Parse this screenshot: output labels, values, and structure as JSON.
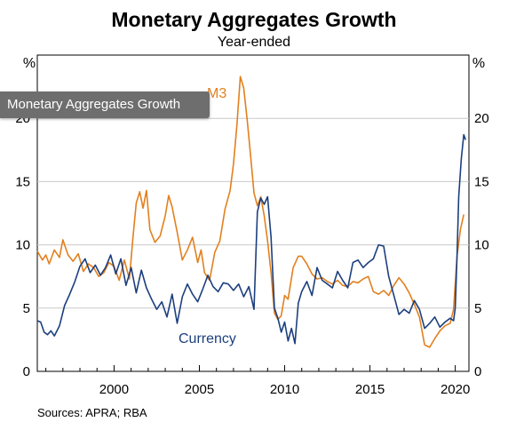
{
  "overlay_label": "Monetary Aggregates Growth",
  "colors": {
    "m3": "#e2801e",
    "currency": "#1c3f7e",
    "grid": "#c9c9c9",
    "axis": "#000000"
  },
  "chart_data": {
    "type": "line",
    "title": "Monetary Aggregates Growth",
    "subtitle": "Year-ended",
    "source": "Sources: APRA; RBA",
    "y_unit_left": "%",
    "y_unit_right": "%",
    "ylim": [
      0,
      25
    ],
    "xlim": [
      1995.5,
      2020.8
    ],
    "grid": true,
    "y_ticks": [
      0,
      5,
      10,
      15,
      20
    ],
    "x_ticks": [
      2000,
      2005,
      2010,
      2015,
      2020
    ],
    "series": [
      {
        "name": "M3",
        "label": "M3",
        "color": "#e2801e",
        "x": [
          1995.5,
          1995.8,
          1996.0,
          1996.2,
          1996.5,
          1996.8,
          1997.0,
          1997.3,
          1997.6,
          1997.9,
          1998.2,
          1998.5,
          1998.8,
          1999.1,
          1999.4,
          1999.7,
          2000.0,
          2000.3,
          2000.6,
          2000.9,
          2001.1,
          2001.3,
          2001.5,
          2001.7,
          2001.9,
          2002.1,
          2002.4,
          2002.7,
          2003.0,
          2003.2,
          2003.4,
          2003.7,
          2004.0,
          2004.3,
          2004.6,
          2004.9,
          2005.1,
          2005.3,
          2005.6,
          2005.9,
          2006.2,
          2006.5,
          2006.8,
          2007.0,
          2007.2,
          2007.4,
          2007.6,
          2007.8,
          2008.0,
          2008.2,
          2008.4,
          2008.6,
          2008.8,
          2009.0,
          2009.2,
          2009.4,
          2009.6,
          2009.8,
          2010.0,
          2010.2,
          2010.5,
          2010.8,
          2011.0,
          2011.3,
          2011.6,
          2011.9,
          2012.2,
          2012.5,
          2012.8,
          2013.1,
          2013.4,
          2013.7,
          2014.0,
          2014.3,
          2014.6,
          2014.9,
          2015.2,
          2015.5,
          2015.8,
          2016.1,
          2016.4,
          2016.7,
          2017.0,
          2017.3,
          2017.6,
          2017.9,
          2018.2,
          2018.5,
          2018.8,
          2019.1,
          2019.4,
          2019.7,
          2019.9,
          2020.1,
          2020.3,
          2020.5
        ],
        "values": [
          9.5,
          8.8,
          9.2,
          8.5,
          9.6,
          9.0,
          10.4,
          9.2,
          8.7,
          9.3,
          7.9,
          8.5,
          8.2,
          7.5,
          7.8,
          8.6,
          8.3,
          7.2,
          8.8,
          7.3,
          10.5,
          13.3,
          14.2,
          12.9,
          14.3,
          11.2,
          10.2,
          10.7,
          12.3,
          13.9,
          13.0,
          11.0,
          8.8,
          9.6,
          10.6,
          8.6,
          9.6,
          7.8,
          7.2,
          9.4,
          10.3,
          12.8,
          14.3,
          16.4,
          19.5,
          23.3,
          22.4,
          19.9,
          17.1,
          14.1,
          13.1,
          13.8,
          12.3,
          10.3,
          7.8,
          4.6,
          4.1,
          4.4,
          6.0,
          5.7,
          8.2,
          9.1,
          9.1,
          8.5,
          7.7,
          7.3,
          7.4,
          7.1,
          6.9,
          7.2,
          6.8,
          6.7,
          7.1,
          7.0,
          7.3,
          7.5,
          6.3,
          6.1,
          6.4,
          6.0,
          6.8,
          7.4,
          6.9,
          6.2,
          5.3,
          4.3,
          2.1,
          1.9,
          2.6,
          3.2,
          3.6,
          3.8,
          4.9,
          9.1,
          11.2,
          12.4
        ]
      },
      {
        "name": "Currency",
        "label": "Currency",
        "color": "#1c3f7e",
        "x": [
          1995.5,
          1995.7,
          1995.9,
          1996.1,
          1996.3,
          1996.5,
          1996.8,
          1997.1,
          1997.4,
          1997.7,
          1998.0,
          1998.3,
          1998.6,
          1998.9,
          1999.2,
          1999.5,
          1999.8,
          2000.1,
          2000.4,
          2000.7,
          2001.0,
          2001.3,
          2001.6,
          2001.9,
          2002.2,
          2002.5,
          2002.8,
          2003.1,
          2003.4,
          2003.7,
          2004.0,
          2004.3,
          2004.6,
          2004.9,
          2005.2,
          2005.5,
          2005.8,
          2006.1,
          2006.4,
          2006.7,
          2007.0,
          2007.3,
          2007.6,
          2007.9,
          2008.2,
          2008.4,
          2008.6,
          2008.8,
          2009.0,
          2009.2,
          2009.4,
          2009.6,
          2009.8,
          2010.0,
          2010.2,
          2010.4,
          2010.6,
          2010.8,
          2011.0,
          2011.3,
          2011.6,
          2011.9,
          2012.2,
          2012.5,
          2012.8,
          2013.1,
          2013.4,
          2013.7,
          2014.0,
          2014.3,
          2014.6,
          2014.9,
          2015.2,
          2015.5,
          2015.8,
          2016.1,
          2016.4,
          2016.7,
          2017.0,
          2017.3,
          2017.6,
          2017.9,
          2018.2,
          2018.5,
          2018.8,
          2019.1,
          2019.4,
          2019.7,
          2019.9,
          2020.0,
          2020.1,
          2020.2,
          2020.35,
          2020.5,
          2020.6
        ],
        "values": [
          4.0,
          3.9,
          3.1,
          2.9,
          3.2,
          2.8,
          3.6,
          5.2,
          6.1,
          7.1,
          8.3,
          8.9,
          7.8,
          8.4,
          7.6,
          8.2,
          9.2,
          7.7,
          8.9,
          6.8,
          8.2,
          6.2,
          8.0,
          6.6,
          5.7,
          4.9,
          5.5,
          4.3,
          6.1,
          3.8,
          5.9,
          6.9,
          6.1,
          5.5,
          6.5,
          7.6,
          6.7,
          6.3,
          7.0,
          6.9,
          6.4,
          6.9,
          5.9,
          6.7,
          4.9,
          12.6,
          13.7,
          13.2,
          13.8,
          10.6,
          5.0,
          4.2,
          3.1,
          3.9,
          2.4,
          3.4,
          2.2,
          5.4,
          6.3,
          7.1,
          6.0,
          8.2,
          7.2,
          6.9,
          6.6,
          7.9,
          7.2,
          6.6,
          8.6,
          8.8,
          8.2,
          8.6,
          8.9,
          10.0,
          9.9,
          7.5,
          6.0,
          4.5,
          4.9,
          4.6,
          5.6,
          4.9,
          3.4,
          3.8,
          4.3,
          3.5,
          3.9,
          4.2,
          4.0,
          5.0,
          9.1,
          13.8,
          16.8,
          18.7,
          18.3
        ]
      }
    ]
  }
}
